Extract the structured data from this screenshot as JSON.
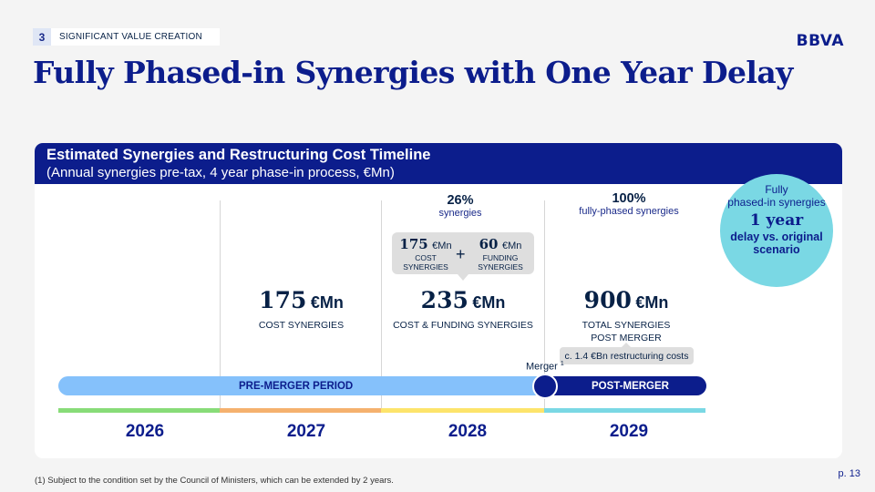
{
  "section": {
    "number": "3",
    "label": "SIGNIFICANT VALUE CREATION"
  },
  "logo": "BBVA",
  "title": "Fully Phased-in Synergies with One Year Delay",
  "panel": {
    "title": "Estimated Synergies and Restructuring Cost Timeline",
    "subtitle": "(Annual synergies pre-tax, 4 year phase-in process, €Mn)"
  },
  "phase": {
    "p2028": {
      "value": "26%",
      "label": "synergies"
    },
    "p2029": {
      "value": "100%",
      "label": "fully-phased synergies"
    }
  },
  "breakdown": {
    "cost": {
      "value": "175",
      "unit": "€Mn",
      "label_1": "COST",
      "label_2": "SYNERGIES"
    },
    "plus": "+",
    "funding": {
      "value": "60",
      "unit": "€Mn",
      "label_1": "FUNDING",
      "label_2": "SYNERGIES"
    }
  },
  "kpis": [
    {
      "value": "175",
      "unit": "€Mn",
      "label_1": "COST SYNERGIES",
      "label_2": ""
    },
    {
      "value": "235",
      "unit": "€Mn",
      "label_1": "COST & FUNDING SYNERGIES",
      "label_2": ""
    },
    {
      "value": "900",
      "unit": "€Mn",
      "label_1": "TOTAL SYNERGIES",
      "label_2": "POST MERGER"
    }
  ],
  "restructuring": "c. 1.4 €Bn restructuring costs",
  "merger": {
    "label": "Merger",
    "sup": "1"
  },
  "periods": {
    "pre": "PRE-MERGER PERIOD",
    "post": "POST-MERGER"
  },
  "years": [
    "2026",
    "2027",
    "2028",
    "2029"
  ],
  "colors": {
    "brand": "#0c1d8c",
    "pre_bar": "#85c1fb",
    "strip_2026": "#88dc78",
    "strip_2027": "#f5b16e",
    "strip_2028": "#fde46b",
    "strip_2029": "#7ad8e4",
    "callout": "#7ad8e4"
  },
  "callout": {
    "line1": "Fully",
    "line2": "phased-in synergies",
    "big": "1 year",
    "bold1": "delay vs. original",
    "bold2": "scenario"
  },
  "footnote": "(1) Subject to the condition set by the Council of Ministers, which can be extended by 2 years.",
  "page": "p. 13"
}
